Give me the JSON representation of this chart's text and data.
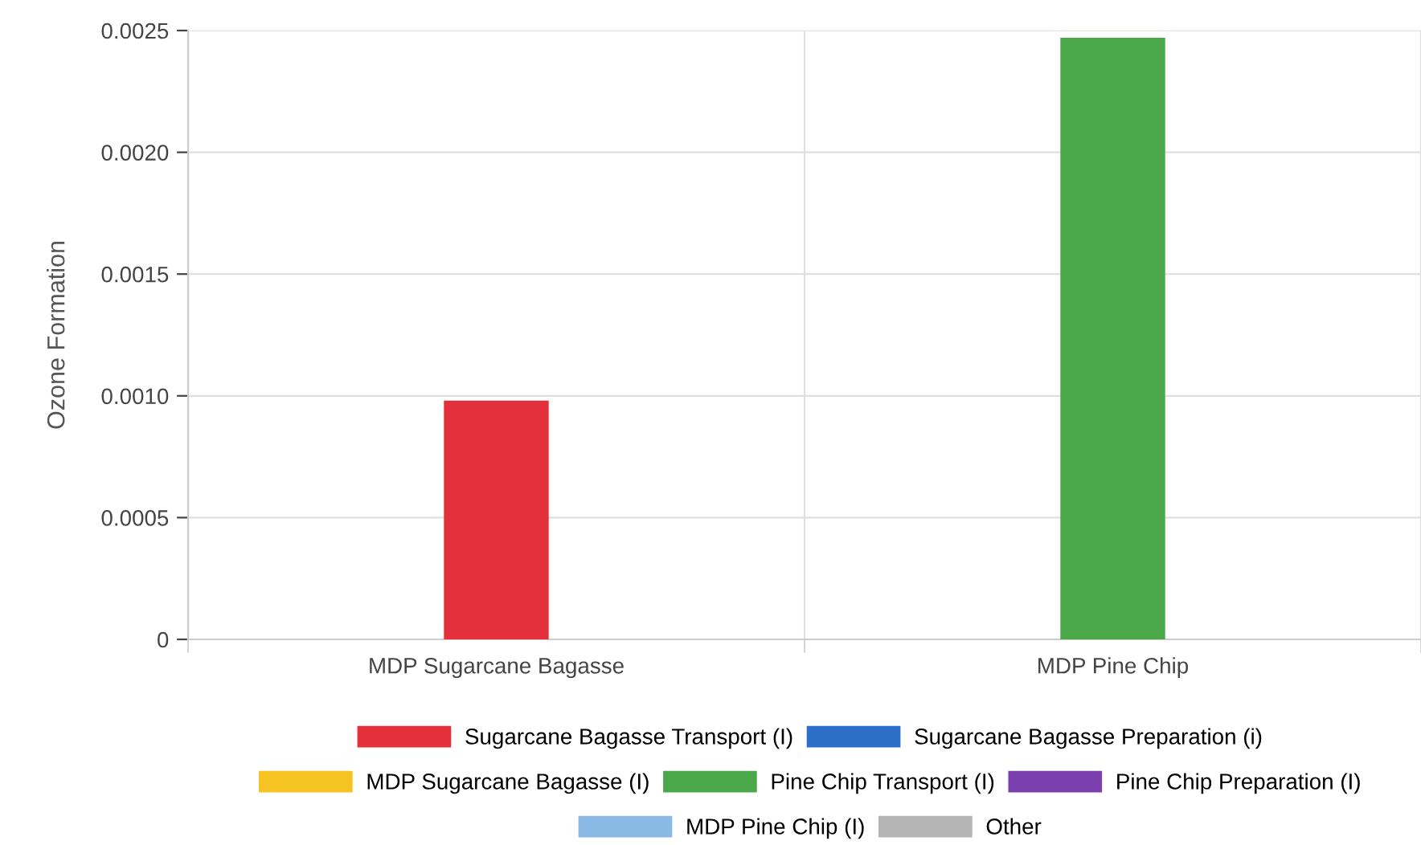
{
  "chart_data": {
    "type": "bar",
    "stacked": true,
    "ylabel": "Ozone Formation",
    "categories": [
      "MDP Sugarcane Bagasse",
      "MDP Pine Chip"
    ],
    "series": [
      {
        "name": "Sugarcane Bagasse Transport (I)",
        "color": "#e3303a",
        "values": [
          0.00098,
          null
        ]
      },
      {
        "name": "Sugarcane Bagasse Preparation (i)",
        "color": "#2c6fc9",
        "values": [
          null,
          null
        ]
      },
      {
        "name": "MDP Sugarcane Bagasse (I)",
        "color": "#f5c423",
        "values": [
          null,
          null
        ]
      },
      {
        "name": "Pine Chip Transport (I)",
        "color": "#4aa84a",
        "values": [
          null,
          0.00247
        ]
      },
      {
        "name": "Pine Chip Preparation (I)",
        "color": "#7b3fae",
        "values": [
          null,
          null
        ]
      },
      {
        "name": "MDP Pine Chip (I)",
        "color": "#8ab9e6",
        "values": [
          null,
          null
        ]
      },
      {
        "name": "Other",
        "color": "#b5b5b5",
        "values": [
          null,
          null
        ]
      }
    ],
    "ylim": [
      0,
      0.0025
    ],
    "yticks": [
      {
        "value": 0,
        "label": "0"
      },
      {
        "value": 0.0005,
        "label": "0.0005"
      },
      {
        "value": 0.001,
        "label": "0.0010"
      },
      {
        "value": 0.0015,
        "label": "0.0015"
      },
      {
        "value": 0.002,
        "label": "0.0020"
      },
      {
        "value": 0.0025,
        "label": "0.0025"
      }
    ],
    "grid": true,
    "legend": "bottom"
  }
}
